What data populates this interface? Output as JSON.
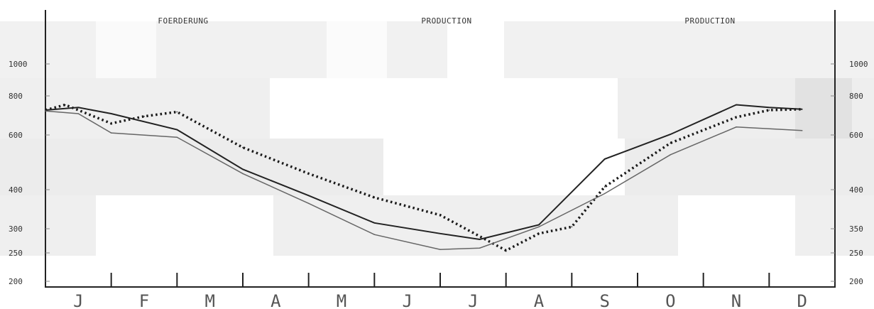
{
  "headers": [
    "FOERDERUNG",
    "PRODUCTION",
    "PRODUCTION"
  ],
  "chart_data": {
    "type": "line",
    "categories": [
      "J",
      "F",
      "M",
      "A",
      "M",
      "J",
      "J",
      "A",
      "S",
      "O",
      "N",
      "D"
    ],
    "y_ticks_left": [
      "1000",
      "800",
      "600",
      "400",
      "300",
      "250",
      "200"
    ],
    "y_ticks_right": [
      "1000",
      "800",
      "600",
      "400",
      "350",
      "250",
      "200"
    ],
    "ylim": [
      200,
      1000
    ],
    "grid": false,
    "legend": "none",
    "series": [
      {
        "style": "dotted",
        "color": "#1a1a1a",
        "points": [
          [
            0,
            720
          ],
          [
            0.3,
            750
          ],
          [
            1.0,
            645
          ],
          [
            1.5,
            685
          ],
          [
            2.0,
            710
          ],
          [
            3.0,
            545
          ],
          [
            4.0,
            455
          ],
          [
            5.0,
            380
          ],
          [
            6.0,
            335
          ],
          [
            7.0,
            255
          ],
          [
            7.5,
            290
          ],
          [
            8.0,
            305
          ],
          [
            8.5,
            410
          ],
          [
            9.5,
            560
          ],
          [
            10.5,
            680
          ],
          [
            11.0,
            720
          ],
          [
            11.5,
            725
          ]
        ]
      },
      {
        "style": "solid-dark",
        "color": "#222222",
        "points": [
          [
            0,
            720
          ],
          [
            0.5,
            735
          ],
          [
            1.0,
            700
          ],
          [
            2.0,
            610
          ],
          [
            3.0,
            470
          ],
          [
            4.0,
            385
          ],
          [
            5.0,
            315
          ],
          [
            6.0,
            290
          ],
          [
            6.6,
            278
          ],
          [
            7.5,
            310
          ],
          [
            8.5,
            505
          ],
          [
            9.5,
            590
          ],
          [
            10.5,
            750
          ],
          [
            11.0,
            735
          ],
          [
            11.5,
            725
          ]
        ]
      },
      {
        "style": "solid-light",
        "color": "#666666",
        "points": [
          [
            0,
            715
          ],
          [
            0.5,
            700
          ],
          [
            1.0,
            595
          ],
          [
            2.0,
            580
          ],
          [
            3.0,
            455
          ],
          [
            4.0,
            365
          ],
          [
            5.0,
            288
          ],
          [
            6.0,
            257
          ],
          [
            6.6,
            260
          ],
          [
            7.5,
            305
          ],
          [
            8.5,
            390
          ],
          [
            9.5,
            520
          ],
          [
            10.5,
            625
          ],
          [
            11.5,
            605
          ]
        ]
      }
    ]
  }
}
